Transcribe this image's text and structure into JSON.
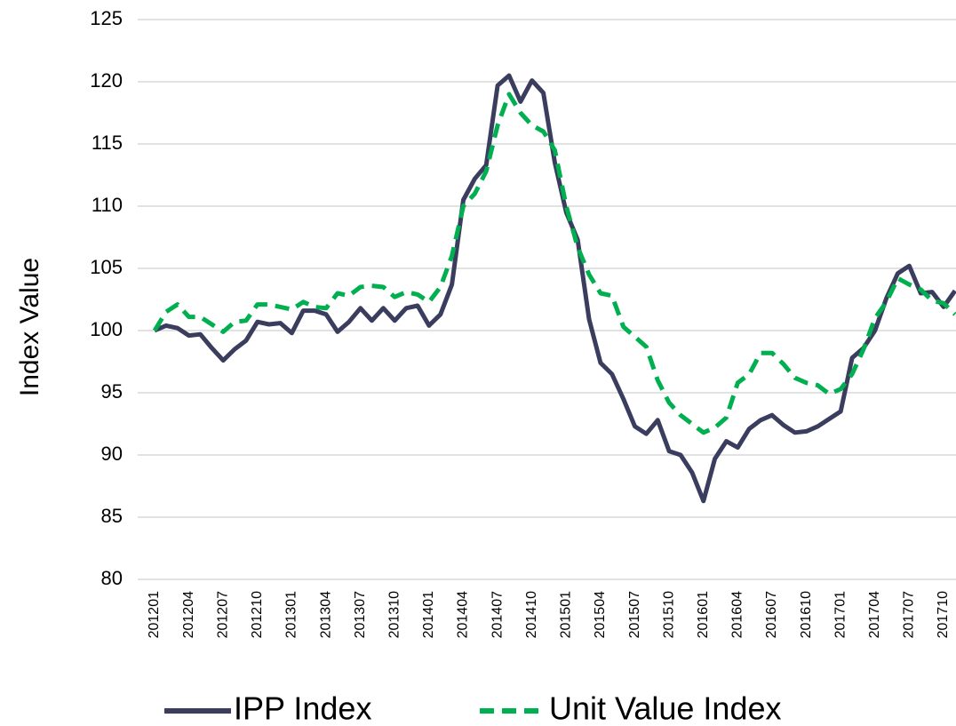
{
  "chart_data": {
    "type": "line",
    "y_label": "Index Value",
    "categories": [
      "201201",
      null,
      null,
      "201204",
      null,
      null,
      "201207",
      null,
      null,
      "201210",
      null,
      null,
      "201301",
      null,
      null,
      "201304",
      null,
      null,
      "201307",
      null,
      null,
      "201310",
      null,
      null,
      "201401",
      null,
      null,
      "201404",
      null,
      null,
      "201407",
      null,
      null,
      "201410",
      null,
      null,
      "201501",
      null,
      null,
      "201504",
      null,
      null,
      "201507",
      null,
      null,
      "201510",
      null,
      null,
      "201601",
      null,
      null,
      "201604",
      null,
      null,
      "201607",
      null,
      null,
      "201610",
      null,
      null,
      "201701",
      null,
      null,
      "201704",
      null,
      null,
      "201707",
      null,
      null,
      "201710",
      null
    ],
    "series": [
      {
        "name": "IPP Index",
        "color": "#3b3d5e",
        "dash": false,
        "values": [
          100,
          100.4,
          100.2,
          99.6,
          99.7,
          98.6,
          97.6,
          98.5,
          99.2,
          100.7,
          100.5,
          100.6,
          99.8,
          101.6,
          101.6,
          101.3,
          99.9,
          100.7,
          101.8,
          100.8,
          101.8,
          100.8,
          101.8,
          102,
          100.4,
          101.3,
          103.7,
          110.5,
          112.2,
          113.3,
          119.7,
          120.5,
          118.4,
          120.1,
          119.1,
          113.5,
          109.5,
          107.3,
          100.9,
          97.4,
          96.5,
          94.5,
          92.3,
          91.7,
          92.8,
          90.3,
          90,
          88.6,
          86.3,
          89.7,
          91.1,
          90.6,
          92.1,
          92.8,
          93.2,
          92.4,
          91.8,
          91.9,
          92.3,
          92.9,
          93.5,
          97.8,
          98.6,
          100,
          102.6,
          104.6,
          105.2,
          103,
          103.1,
          101.9,
          103.2
        ]
      },
      {
        "name": "Unit Value Index",
        "color": "#00b050",
        "dash": true,
        "values": [
          100,
          101.5,
          102.1,
          101.1,
          101.1,
          100.5,
          99.9,
          100.7,
          100.8,
          102.1,
          102.1,
          101.9,
          101.7,
          102.3,
          101.9,
          101.8,
          103,
          102.8,
          103.5,
          103.6,
          103.5,
          102.7,
          103.1,
          102.9,
          102.3,
          103.5,
          106,
          110,
          111,
          112.8,
          116.5,
          119,
          117.5,
          116.5,
          116,
          114.5,
          110,
          106.7,
          104.5,
          103,
          102.8,
          100.3,
          99.5,
          98.7,
          96,
          94.2,
          93.2,
          92.5,
          91.8,
          92.2,
          93,
          95.8,
          96.5,
          98.2,
          98.2,
          97.3,
          96.2,
          95.8,
          95.6,
          94.9,
          95.3,
          96.5,
          98.5,
          101,
          102.3,
          104.2,
          103.7,
          103.3,
          102.4,
          102.2,
          101.3
        ]
      }
    ],
    "ylim": [
      80,
      125
    ],
    "yticks": [
      80,
      85,
      90,
      95,
      100,
      105,
      110,
      115,
      120,
      125
    ],
    "grid": true,
    "legend": "bottom"
  }
}
